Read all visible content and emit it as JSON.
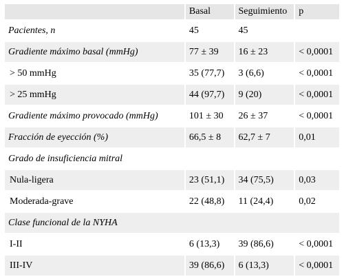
{
  "table": {
    "columns": [
      "Basal",
      "Seguimiento",
      "p"
    ],
    "rows": [
      [
        "Pacientes, n",
        "45",
        "45"
      ],
      [
        "Gradiente máximo basal (mmHg)",
        "77 ± 39",
        "16 ± 23",
        "< 0,0001"
      ],
      [
        "> 50 mmHg",
        "35 (77,7)",
        "3 (6,6)",
        "< 0,0001"
      ],
      [
        "> 25 mmHg",
        "44 (97,7)",
        "9 (20)",
        "< 0,0001"
      ],
      [
        "Gradiente máximo provocado (mmHg)",
        "101 ± 30",
        "26 ± 37",
        "< 0,0001"
      ],
      [
        "Fracción de eyección (%)",
        "66,5 ± 8",
        "62,7 ± 7",
        "0,01"
      ],
      [
        "Grado de insuficiencia mitral"
      ],
      [
        "Nula-ligera",
        "23 (51,1)",
        "34 (75,5)",
        "0,03"
      ],
      [
        "Moderada-grave",
        "22 (48,8)",
        "11 (24,4)",
        "0,02"
      ],
      [
        "Clase funcional de la NYHA"
      ],
      [
        "I-II",
        "6 (13,3)",
        "39 (86,6)",
        "< 0,0001"
      ],
      [
        "III-IV",
        "39 (86,6)",
        "6 (13,3)",
        "< 0,0001"
      ]
    ]
  }
}
